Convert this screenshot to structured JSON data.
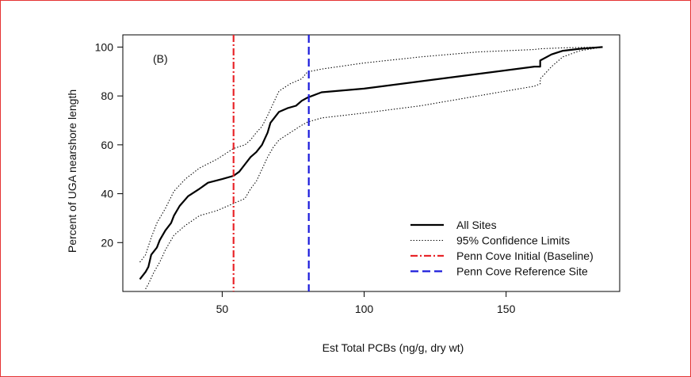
{
  "chart_data": {
    "type": "line",
    "panel_label": "(B)",
    "xlabel": "Est Total PCBs (ng/g, dry wt)",
    "ylabel": "Percent of UGA nearshore length",
    "xlim": [
      15,
      190
    ],
    "ylim": [
      0,
      105
    ],
    "xticks": [
      50,
      100,
      150
    ],
    "yticks": [
      20,
      40,
      60,
      80,
      100
    ],
    "grid": false,
    "legend_position": "bottom-right",
    "series": [
      {
        "name": "All Sites",
        "style": "solid",
        "color": "#000000",
        "points": [
          [
            21,
            5
          ],
          [
            23,
            8
          ],
          [
            24,
            10
          ],
          [
            25,
            15
          ],
          [
            27,
            18
          ],
          [
            28,
            21
          ],
          [
            30,
            25
          ],
          [
            32,
            28
          ],
          [
            33,
            31
          ],
          [
            35,
            35
          ],
          [
            38,
            39
          ],
          [
            42,
            42
          ],
          [
            45,
            44.5
          ],
          [
            50,
            46
          ],
          [
            54,
            47.3
          ],
          [
            56,
            49
          ],
          [
            58,
            52
          ],
          [
            60,
            55
          ],
          [
            62,
            57
          ],
          [
            64,
            60
          ],
          [
            66,
            65
          ],
          [
            67,
            69
          ],
          [
            70,
            73.5
          ],
          [
            73,
            75
          ],
          [
            76,
            76
          ],
          [
            78,
            78
          ],
          [
            80,
            79.3
          ],
          [
            85,
            81.5
          ],
          [
            100,
            83
          ],
          [
            120,
            86
          ],
          [
            140,
            89
          ],
          [
            160,
            92
          ],
          [
            162,
            92
          ],
          [
            162,
            94.5
          ],
          [
            166,
            97
          ],
          [
            170,
            98.5
          ],
          [
            176,
            99.3
          ],
          [
            184,
            100
          ]
        ]
      },
      {
        "name": "95% Confidence Limits",
        "style": "dotted",
        "color": "#000000",
        "points": [
          [
            21,
            12
          ],
          [
            23,
            15
          ],
          [
            25,
            22
          ],
          [
            27,
            28
          ],
          [
            30,
            34
          ],
          [
            33,
            41
          ],
          [
            37,
            46
          ],
          [
            42,
            50.5
          ],
          [
            48,
            54
          ],
          [
            54,
            58.5
          ],
          [
            58,
            60
          ],
          [
            60,
            62
          ],
          [
            62,
            65
          ],
          [
            64,
            67.5
          ],
          [
            66,
            72
          ],
          [
            68,
            77
          ],
          [
            70,
            82
          ],
          [
            74,
            85
          ],
          [
            78,
            87
          ],
          [
            80,
            89.8
          ],
          [
            85,
            91
          ],
          [
            100,
            93.5
          ],
          [
            120,
            96
          ],
          [
            140,
            98
          ],
          [
            160,
            99
          ],
          [
            162,
            99.3
          ],
          [
            170,
            99.7
          ],
          [
            184,
            100
          ]
        ]
      },
      {
        "name": "95% Confidence Limits",
        "style": "dotted",
        "color": "#000000",
        "points": [
          [
            23,
            1
          ],
          [
            24,
            3
          ],
          [
            26,
            8
          ],
          [
            28,
            12
          ],
          [
            30,
            17
          ],
          [
            33,
            23
          ],
          [
            37,
            27
          ],
          [
            42,
            31
          ],
          [
            48,
            33
          ],
          [
            54,
            36
          ],
          [
            58,
            38
          ],
          [
            60,
            42
          ],
          [
            62,
            45
          ],
          [
            64,
            50
          ],
          [
            66,
            55
          ],
          [
            68,
            59
          ],
          [
            70,
            62
          ],
          [
            74,
            65
          ],
          [
            78,
            68
          ],
          [
            80,
            69.3
          ],
          [
            85,
            71
          ],
          [
            100,
            73
          ],
          [
            120,
            76
          ],
          [
            140,
            80
          ],
          [
            160,
            84
          ],
          [
            162,
            85
          ],
          [
            162,
            87
          ],
          [
            166,
            92
          ],
          [
            170,
            96
          ],
          [
            176,
            98.5
          ],
          [
            184,
            100
          ]
        ]
      },
      {
        "name": "Penn Cove Initial (Baseline)",
        "style": "dashdot",
        "color": "#e8262a",
        "vline": 54
      },
      {
        "name": "Penn Cove Reference Site",
        "style": "dashed",
        "color": "#1a1adb",
        "vline": 80.5
      }
    ]
  }
}
